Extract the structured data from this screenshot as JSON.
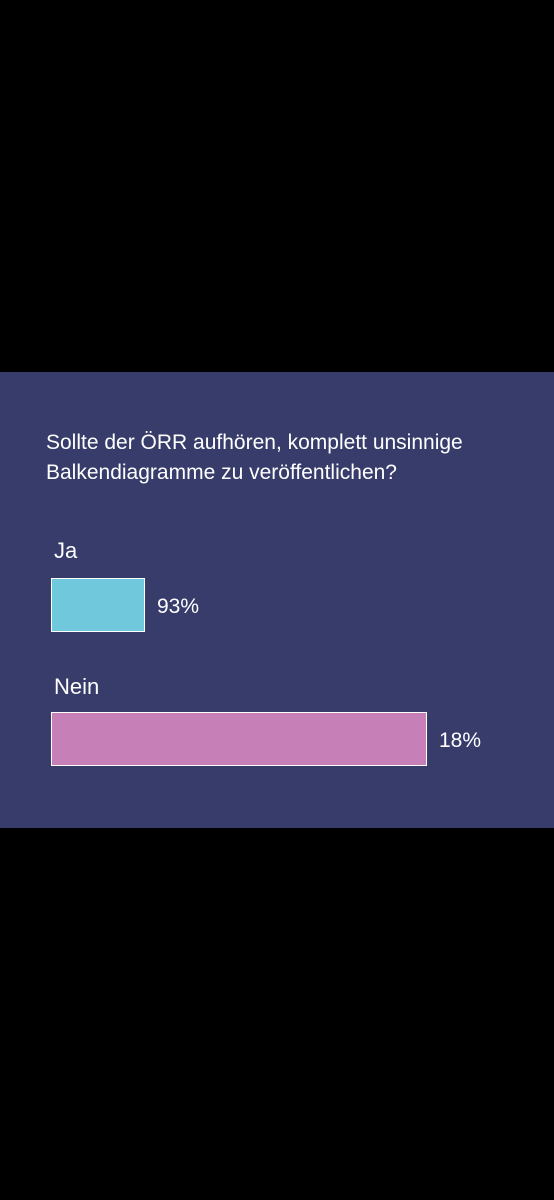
{
  "question": {
    "line1": "Sollte der ÖRR aufhören, komplett unsinnige",
    "line2": "Balkendiagramme zu veröffentlichen?"
  },
  "chart_data": {
    "type": "bar",
    "title": "Sollte der ÖRR aufhören, komplett unsinnige Balkendiagramme zu veröffentlichen?",
    "categories": [
      "Ja",
      "Nein"
    ],
    "values": [
      93,
      18
    ],
    "value_labels": [
      "93%",
      "18%"
    ],
    "bar_lengths": [
      0.25,
      1.0
    ],
    "colors": [
      "#6fc8db",
      "#c77fb8"
    ],
    "legend": "none",
    "grid": false
  }
}
